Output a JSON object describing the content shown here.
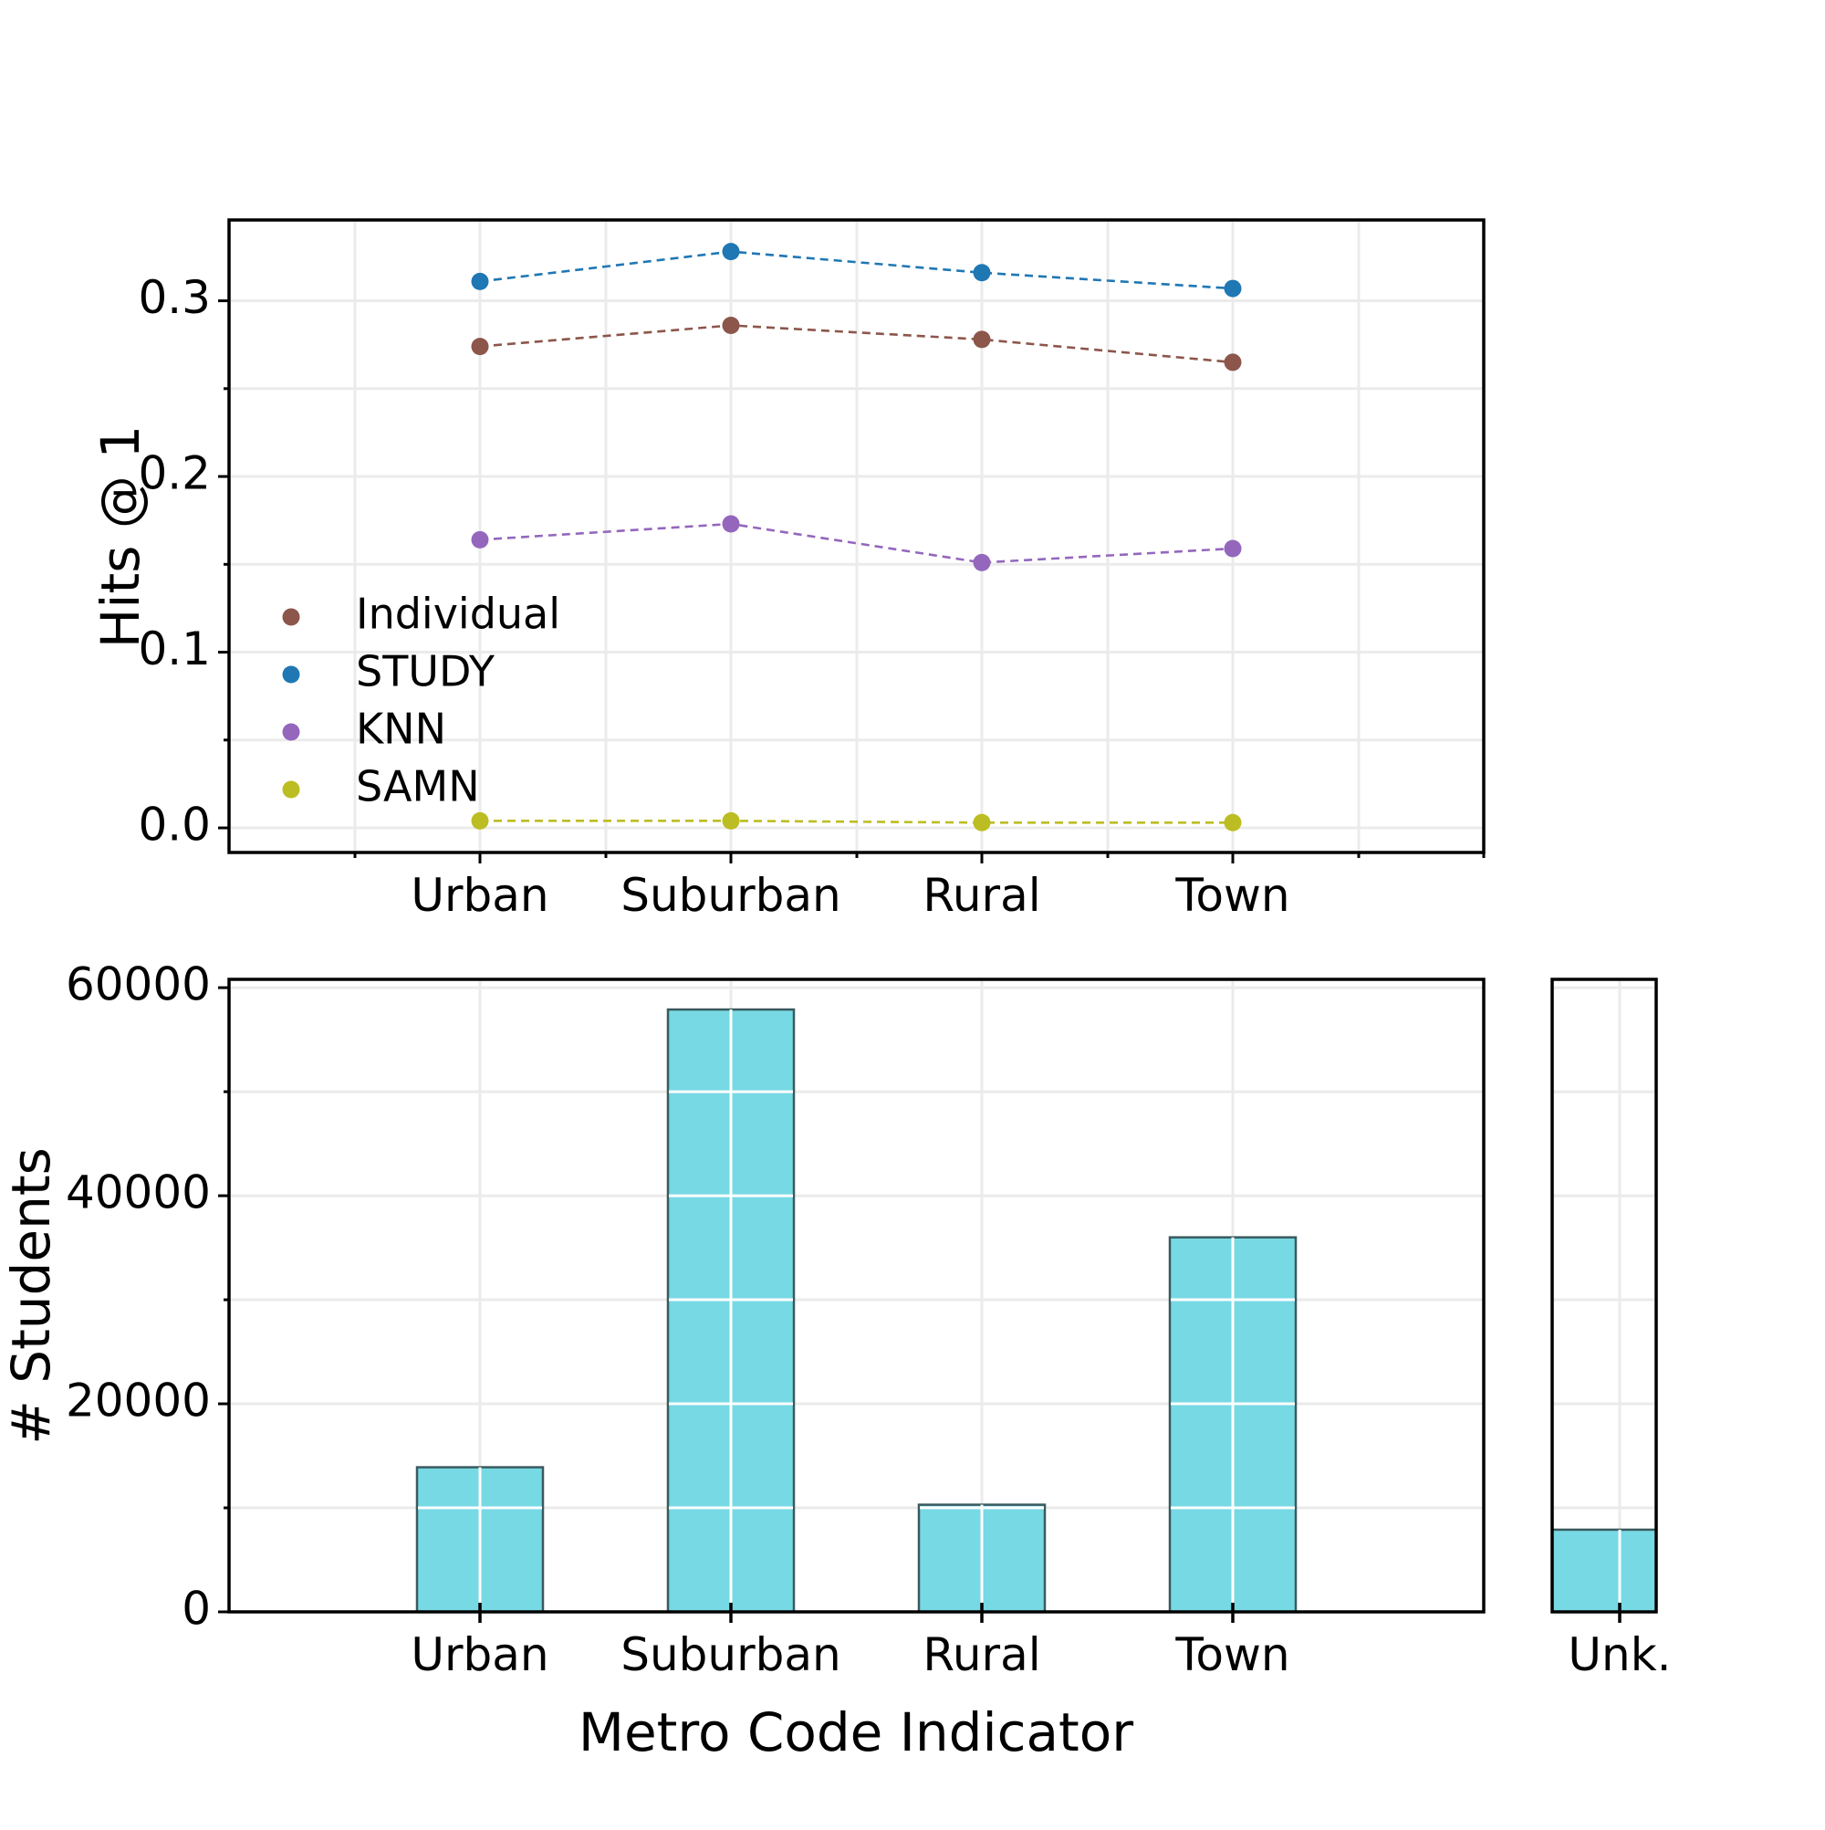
{
  "colors": {
    "Individual": "#8c564b",
    "STUDY": "#1f77b4",
    "KNN": "#9467bd",
    "SAMN": "#bcbd22",
    "bar_fill": "#76d9e4",
    "bar_edge": "#3a5a5e"
  },
  "chart_data": [
    {
      "type": "line",
      "categories": [
        "Urban",
        "Suburban",
        "Rural",
        "Town"
      ],
      "ylabel": "Hits @ 1",
      "xlabel": "",
      "ylim": [
        -0.014,
        0.346
      ],
      "yticks": [
        "0.0",
        "0.1",
        "0.2",
        "0.3"
      ],
      "grid": true,
      "legend": "lower-left",
      "series": [
        {
          "name": "Individual",
          "values": [
            0.274,
            0.286,
            0.278,
            0.265
          ]
        },
        {
          "name": "STUDY",
          "values": [
            0.311,
            0.328,
            0.316,
            0.307
          ]
        },
        {
          "name": "KNN",
          "values": [
            0.164,
            0.173,
            0.151,
            0.159
          ]
        },
        {
          "name": "SAMN",
          "values": [
            0.004,
            0.004,
            0.003,
            0.003
          ]
        }
      ]
    },
    {
      "type": "bar",
      "categories": [
        "Urban",
        "Suburban",
        "Rural",
        "Town"
      ],
      "values": [
        13900,
        57900,
        10300,
        36000
      ],
      "ylabel": "# Students",
      "xlabel": "Metro Code Indicator",
      "ylim": [
        0,
        60800
      ],
      "yticks": [
        "0",
        "20000",
        "40000",
        "60000"
      ],
      "grid": true
    },
    {
      "type": "bar",
      "categories": [
        "Unk."
      ],
      "values": [
        7900
      ],
      "ylim": [
        0,
        60800
      ],
      "grid": true
    }
  ]
}
